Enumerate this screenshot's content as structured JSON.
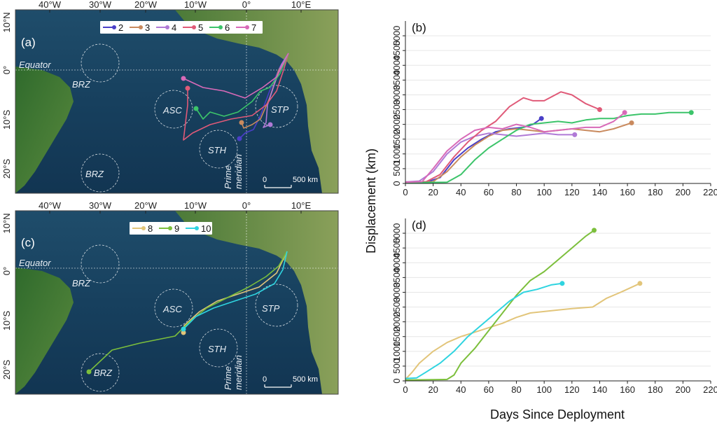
{
  "figure": {
    "xlabel": "Days Since Deployment",
    "ylabel": "Displacement (km)"
  },
  "maps": [
    {
      "id": "a",
      "letter": "(a)",
      "legend_ids": [
        "2",
        "3",
        "4",
        "5",
        "6",
        "7"
      ],
      "lon_labels": [
        "40°W",
        "30°W",
        "20°W",
        "10°W",
        "0°",
        "10°E"
      ],
      "lat_labels": [
        "10°N",
        "0°",
        "10°S",
        "20°S"
      ],
      "labels": {
        "equator": "Equator",
        "brz": "BRZ",
        "asc": "ASC",
        "sth": "STH",
        "stp": "STP",
        "prime": "Prime",
        "meridian": "meridian"
      },
      "scale": {
        "zero": "0",
        "dist": "500 km"
      }
    },
    {
      "id": "c",
      "letter": "(c)",
      "legend_ids": [
        "8",
        "9",
        "10"
      ],
      "lon_labels": [
        "40°W",
        "30°W",
        "20°W",
        "10°W",
        "0°",
        "10°E"
      ],
      "lat_labels": [
        "10°N",
        "0°",
        "10°S",
        "20°S"
      ],
      "labels": {
        "equator": "Equator",
        "brz": "BRZ",
        "asc": "ASC",
        "sth": "STH",
        "stp": "STP",
        "prime": "Prime",
        "meridian": "meridian"
      },
      "scale": {
        "zero": "0",
        "dist": "500 km"
      }
    }
  ],
  "colors": {
    "2": "#4a3fc7",
    "3": "#c98a5e",
    "4": "#b07ad6",
    "5": "#e05a78",
    "6": "#3cc46a",
    "7": "#d86ab8",
    "8": "#e2c57a",
    "9": "#7cbf3c",
    "10": "#2fd4e0"
  },
  "chart_data": [
    {
      "panel": "(b)",
      "type": "line",
      "xlim": [
        0,
        220
      ],
      "ylim": [
        0,
        5500
      ],
      "xticks": [
        0,
        20,
        40,
        60,
        80,
        100,
        120,
        140,
        160,
        180,
        200,
        220
      ],
      "yticks": [
        0,
        500,
        1000,
        1500,
        2000,
        2500,
        3000,
        3500,
        4000,
        4500,
        5000
      ],
      "series": [
        {
          "name": "2",
          "points": [
            [
              0,
              50
            ],
            [
              15,
              40
            ],
            [
              25,
              200
            ],
            [
              35,
              800
            ],
            [
              45,
              1200
            ],
            [
              55,
              1500
            ],
            [
              65,
              1750
            ],
            [
              75,
              1850
            ],
            [
              85,
              1900
            ],
            [
              92,
              2000
            ],
            [
              98,
              2200
            ]
          ]
        },
        {
          "name": "3",
          "points": [
            [
              0,
              40
            ],
            [
              20,
              60
            ],
            [
              30,
              400
            ],
            [
              40,
              900
            ],
            [
              50,
              1300
            ],
            [
              60,
              1600
            ],
            [
              70,
              1800
            ],
            [
              80,
              1850
            ],
            [
              90,
              1800
            ],
            [
              100,
              1750
            ],
            [
              110,
              1800
            ],
            [
              120,
              1850
            ],
            [
              130,
              1800
            ],
            [
              140,
              1750
            ],
            [
              150,
              1850
            ],
            [
              163,
              2050
            ]
          ]
        },
        {
          "name": "4",
          "points": [
            [
              0,
              50
            ],
            [
              10,
              80
            ],
            [
              20,
              400
            ],
            [
              30,
              1000
            ],
            [
              40,
              1400
            ],
            [
              50,
              1600
            ],
            [
              60,
              1700
            ],
            [
              70,
              1650
            ],
            [
              80,
              1600
            ],
            [
              90,
              1650
            ],
            [
              100,
              1700
            ],
            [
              110,
              1650
            ],
            [
              122,
              1650
            ]
          ]
        },
        {
          "name": "5",
          "points": [
            [
              0,
              40
            ],
            [
              15,
              60
            ],
            [
              25,
              300
            ],
            [
              35,
              900
            ],
            [
              45,
              1400
            ],
            [
              55,
              1800
            ],
            [
              65,
              2100
            ],
            [
              75,
              2600
            ],
            [
              85,
              2900
            ],
            [
              92,
              2800
            ],
            [
              100,
              2800
            ],
            [
              112,
              3100
            ],
            [
              120,
              3000
            ],
            [
              130,
              2700
            ],
            [
              140,
              2500
            ]
          ]
        },
        {
          "name": "6",
          "points": [
            [
              0,
              30
            ],
            [
              30,
              40
            ],
            [
              40,
              300
            ],
            [
              50,
              800
            ],
            [
              60,
              1200
            ],
            [
              70,
              1500
            ],
            [
              80,
              1800
            ],
            [
              90,
              2000
            ],
            [
              100,
              2050
            ],
            [
              110,
              2100
            ],
            [
              120,
              2050
            ],
            [
              130,
              2150
            ],
            [
              140,
              2200
            ],
            [
              150,
              2200
            ],
            [
              160,
              2300
            ],
            [
              170,
              2350
            ],
            [
              180,
              2350
            ],
            [
              190,
              2400
            ],
            [
              206,
              2400
            ]
          ]
        },
        {
          "name": "7",
          "points": [
            [
              0,
              40
            ],
            [
              12,
              60
            ],
            [
              20,
              500
            ],
            [
              30,
              1100
            ],
            [
              40,
              1500
            ],
            [
              50,
              1800
            ],
            [
              60,
              1900
            ],
            [
              70,
              1850
            ],
            [
              80,
              2000
            ],
            [
              90,
              1900
            ],
            [
              100,
              1750
            ],
            [
              110,
              1800
            ],
            [
              120,
              1850
            ],
            [
              130,
              1900
            ],
            [
              140,
              1900
            ],
            [
              150,
              2100
            ],
            [
              158,
              2400
            ]
          ]
        }
      ]
    },
    {
      "panel": "(d)",
      "type": "line",
      "xlim": [
        0,
        220
      ],
      "ylim": [
        0,
        5500
      ],
      "xticks": [
        0,
        20,
        40,
        60,
        80,
        100,
        120,
        140,
        160,
        180,
        200,
        220
      ],
      "yticks": [
        0,
        500,
        1000,
        1500,
        2000,
        2500,
        3000,
        3500,
        4000,
        4500,
        5000
      ],
      "series": [
        {
          "name": "8",
          "points": [
            [
              0,
              50
            ],
            [
              5,
              300
            ],
            [
              10,
              600
            ],
            [
              20,
              1000
            ],
            [
              30,
              1300
            ],
            [
              40,
              1500
            ],
            [
              50,
              1650
            ],
            [
              60,
              1800
            ],
            [
              70,
              1950
            ],
            [
              80,
              2150
            ],
            [
              90,
              2300
            ],
            [
              100,
              2350
            ],
            [
              110,
              2400
            ],
            [
              120,
              2450
            ],
            [
              135,
              2500
            ],
            [
              145,
              2800
            ],
            [
              155,
              3000
            ],
            [
              169,
              3300
            ]
          ]
        },
        {
          "name": "9",
          "points": [
            [
              0,
              30
            ],
            [
              20,
              40
            ],
            [
              30,
              50
            ],
            [
              35,
              200
            ],
            [
              40,
              600
            ],
            [
              50,
              1100
            ],
            [
              60,
              1700
            ],
            [
              70,
              2300
            ],
            [
              80,
              2900
            ],
            [
              90,
              3400
            ],
            [
              100,
              3700
            ],
            [
              110,
              4100
            ],
            [
              120,
              4500
            ],
            [
              130,
              4900
            ],
            [
              136,
              5100
            ]
          ]
        },
        {
          "name": "10",
          "points": [
            [
              0,
              80
            ],
            [
              8,
              100
            ],
            [
              15,
              300
            ],
            [
              25,
              600
            ],
            [
              35,
              1000
            ],
            [
              45,
              1500
            ],
            [
              55,
              1900
            ],
            [
              65,
              2300
            ],
            [
              75,
              2700
            ],
            [
              85,
              3000
            ],
            [
              95,
              3100
            ],
            [
              105,
              3250
            ],
            [
              113,
              3300
            ]
          ]
        }
      ]
    }
  ]
}
